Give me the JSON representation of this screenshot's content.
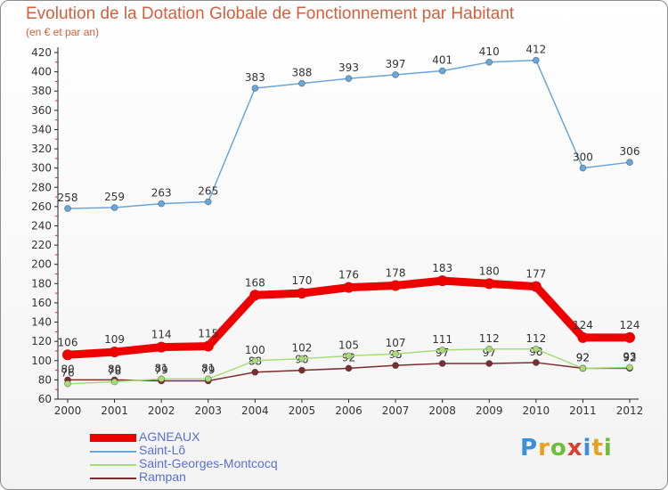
{
  "header": {
    "title": "Evolution de la Dotation Globale de Fonctionnement par Habitant",
    "subtitle": "(en € et par an)"
  },
  "brand": {
    "letters": [
      {
        "ch": "P",
        "color": "#3b8fd6"
      },
      {
        "ch": "r",
        "color": "#e8a020"
      },
      {
        "ch": "o",
        "color": "#6cbf3a"
      },
      {
        "ch": "x",
        "color": "#d84030"
      },
      {
        "ch": "i",
        "color": "#3b8fd6"
      },
      {
        "ch": "t",
        "color": "#e8a020"
      },
      {
        "ch": "i",
        "color": "#6cbf3a"
      }
    ]
  },
  "chart_data": {
    "type": "line",
    "title": "Evolution de la Dotation Globale de Fonctionnement par Habitant",
    "subtitle": "(en € et par an)",
    "xlabel": "",
    "ylabel": "",
    "x": [
      "2000",
      "2001",
      "2002",
      "2003",
      "2004",
      "2005",
      "2006",
      "2007",
      "2008",
      "2009",
      "2010",
      "2011",
      "2012"
    ],
    "ylim": [
      60,
      420
    ],
    "yticks": [
      60,
      80,
      100,
      120,
      140,
      160,
      180,
      200,
      220,
      240,
      260,
      280,
      300,
      320,
      340,
      360,
      380,
      400,
      420
    ],
    "grid": false,
    "legend": "bottom-left",
    "series": [
      {
        "name": "AGNEAUX",
        "color": "#ee0000",
        "emphasis": "thick",
        "values": [
          106,
          109,
          114,
          115,
          168,
          170,
          176,
          178,
          183,
          180,
          177,
          124,
          124
        ]
      },
      {
        "name": "Saint-Lô",
        "color": "#6aa6d8",
        "emphasis": "normal",
        "values": [
          258,
          259,
          263,
          265,
          383,
          388,
          393,
          397,
          401,
          410,
          412,
          300,
          306
        ]
      },
      {
        "name": "Saint-Georges-Montcocq",
        "color": "#a8dc78",
        "emphasis": "normal",
        "values": [
          76,
          78,
          81,
          81,
          100,
          102,
          105,
          107,
          111,
          112,
          112,
          92,
          93
        ]
      },
      {
        "name": "Rampan",
        "color": "#7a2e2e",
        "emphasis": "normal",
        "values": [
          80,
          80,
          79,
          79,
          88,
          90,
          92,
          95,
          97,
          97,
          98,
          92,
          92
        ]
      }
    ]
  }
}
